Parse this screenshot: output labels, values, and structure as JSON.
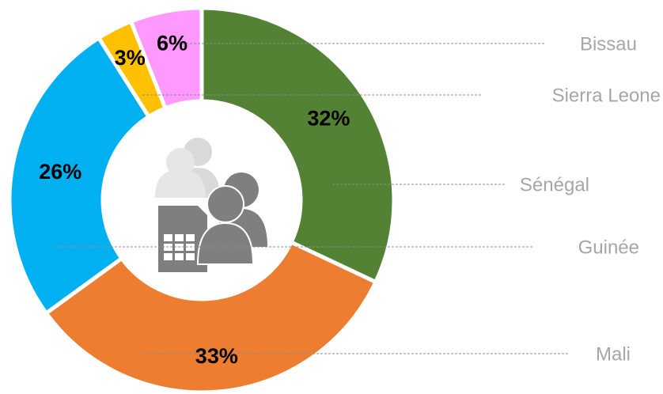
{
  "chart_data": {
    "type": "donut",
    "categories": [
      "Sénégal",
      "Mali",
      "Guinée",
      "Sierra Leone",
      "Bissau"
    ],
    "values": [
      32,
      33,
      26,
      3,
      6
    ],
    "value_labels": [
      "32%",
      "33%",
      "26%",
      "3%",
      "6%"
    ],
    "colors": [
      "#548235",
      "#ed7d31",
      "#00b0f0",
      "#ffc000",
      "#ff99ff"
    ]
  }
}
